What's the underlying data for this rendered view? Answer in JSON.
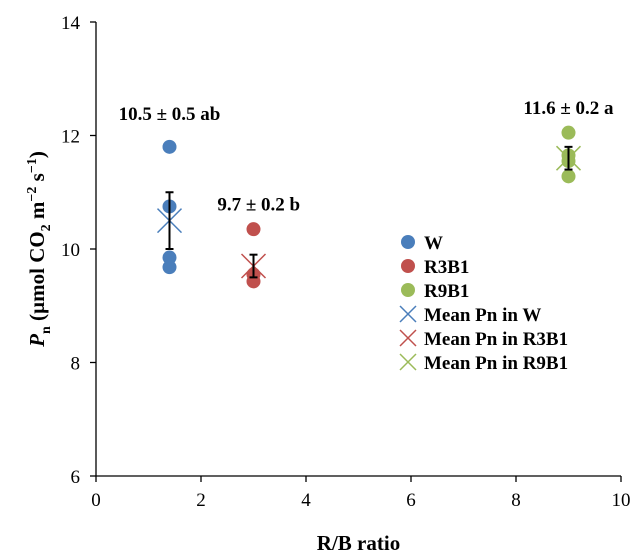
{
  "chart_data": {
    "type": "scatter",
    "xlabel": "R/B ratio",
    "ylabel": {
      "parts": [
        {
          "text": "P",
          "style": "italic"
        },
        {
          "text": "n",
          "style": "sub"
        },
        {
          "text": " (µmol CO",
          "style": "normal"
        },
        {
          "text": "2",
          "style": "sub"
        },
        {
          "text": " m",
          "style": "normal"
        },
        {
          "text": "−2",
          "style": "sup"
        },
        {
          "text": " s",
          "style": "normal"
        },
        {
          "text": "−1",
          "style": "sup"
        },
        {
          "text": ")",
          "style": "normal"
        }
      ]
    },
    "xlim": [
      0,
      10
    ],
    "ylim": [
      6,
      14
    ],
    "xticks": [
      0,
      2,
      4,
      6,
      8,
      10
    ],
    "yticks": [
      6,
      8,
      10,
      12,
      14
    ],
    "grid": false,
    "legend_position": "right-middle",
    "series": [
      {
        "name": "W",
        "kind": "point",
        "color": "#4a7ebb",
        "x": [
          1.4,
          1.4,
          1.4,
          1.4
        ],
        "y": [
          11.8,
          10.75,
          9.85,
          9.68
        ]
      },
      {
        "name": "R3B1",
        "kind": "point",
        "color": "#c0504d",
        "x": [
          3.0,
          3.0,
          3.0
        ],
        "y": [
          10.35,
          9.55,
          9.43
        ]
      },
      {
        "name": "R9B1",
        "kind": "point",
        "color": "#9bbb59",
        "x": [
          9.0,
          9.0,
          9.0,
          9.0
        ],
        "y": [
          12.05,
          11.65,
          11.55,
          11.28
        ]
      },
      {
        "name": "Mean Pn in W",
        "kind": "mean",
        "color": "#4a7ebb",
        "x": 1.4,
        "y": 10.5,
        "error": 0.5
      },
      {
        "name": "Mean Pn in R3B1",
        "kind": "mean",
        "color": "#c0504d",
        "x": 3.0,
        "y": 9.7,
        "error": 0.2
      },
      {
        "name": "Mean Pn in R9B1",
        "kind": "mean",
        "color": "#9bbb59",
        "x": 9.0,
        "y": 11.6,
        "error": 0.2
      }
    ],
    "annotations": [
      {
        "text": "10.5 ± 0.5 ab",
        "x": 1.4,
        "y": 12.4
      },
      {
        "text": "9.7 ± 0.2 b",
        "x": 3.1,
        "y": 10.8
      },
      {
        "text": "11.6 ± 0.2 a",
        "x": 9.0,
        "y": 12.5
      }
    ]
  }
}
